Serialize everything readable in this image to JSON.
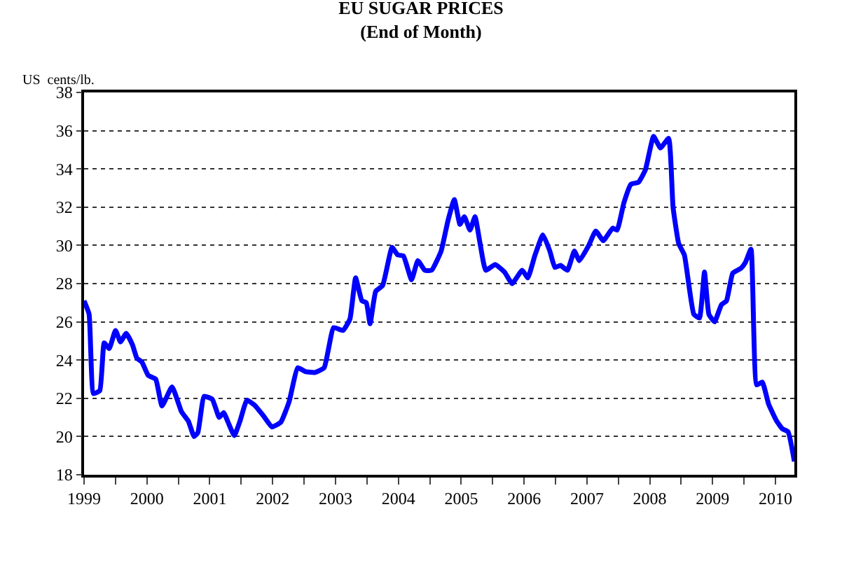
{
  "chart_data": {
    "type": "line",
    "title": "EU SUGAR PRICES\n(End of Month)",
    "ylabel": "US  cents/lb.",
    "x": [
      1999.0,
      1999.08,
      1999.15,
      1999.25,
      1999.32,
      1999.4,
      1999.5,
      1999.58,
      1999.67,
      1999.77,
      1999.84,
      1999.92,
      2000.02,
      2000.14,
      2000.24,
      2000.4,
      2000.55,
      2000.66,
      2000.75,
      2000.81,
      2000.91,
      2001.04,
      2001.15,
      2001.22,
      2001.31,
      2001.39,
      2001.48,
      2001.59,
      2001.71,
      2001.85,
      2001.99,
      2002.13,
      2002.26,
      2002.4,
      2002.52,
      2002.67,
      2002.82,
      2002.97,
      2003.12,
      2003.23,
      2003.32,
      2003.42,
      2003.49,
      2003.55,
      2003.64,
      2003.75,
      2003.9,
      2003.99,
      2004.08,
      2004.21,
      2004.31,
      2004.42,
      2004.53,
      2004.68,
      2004.79,
      2004.89,
      2004.98,
      2005.05,
      2005.14,
      2005.22,
      2005.3,
      2005.39,
      2005.54,
      2005.69,
      2005.81,
      2005.97,
      2006.06,
      2006.17,
      2006.3,
      2006.41,
      2006.49,
      2006.58,
      2006.69,
      2006.8,
      2006.88,
      2007.03,
      2007.14,
      2007.26,
      2007.41,
      2007.48,
      2007.59,
      2007.7,
      2007.82,
      2007.93,
      2008.06,
      2008.17,
      2008.3,
      2008.37,
      2008.46,
      2008.55,
      2008.7,
      2008.79,
      2008.87,
      2008.94,
      2009.03,
      2009.14,
      2009.22,
      2009.32,
      2009.45,
      2009.52,
      2009.61,
      2009.7,
      2009.79,
      2009.89,
      2010.02,
      2010.11,
      2010.2,
      2010.3
    ],
    "series": [
      {
        "color": "#0000ff",
        "values": [
          27.1,
          26.4,
          22.25,
          22.4,
          24.9,
          24.6,
          25.55,
          24.95,
          25.4,
          24.8,
          24.1,
          23.9,
          23.2,
          23.0,
          21.6,
          22.6,
          21.3,
          20.8,
          20.0,
          20.2,
          22.1,
          21.95,
          21.0,
          21.25,
          20.6,
          20.05,
          20.8,
          21.9,
          21.65,
          21.1,
          20.5,
          20.75,
          21.8,
          23.6,
          23.4,
          23.35,
          23.6,
          25.7,
          25.55,
          26.15,
          28.3,
          27.1,
          27.0,
          25.9,
          27.6,
          27.9,
          29.9,
          29.5,
          29.45,
          28.2,
          29.2,
          28.7,
          28.7,
          29.7,
          31.3,
          32.4,
          31.1,
          31.5,
          30.8,
          31.5,
          30.1,
          28.7,
          29.0,
          28.6,
          28.0,
          28.7,
          28.3,
          29.45,
          30.55,
          29.7,
          28.85,
          28.95,
          28.7,
          29.7,
          29.2,
          30.0,
          30.75,
          30.25,
          30.9,
          30.8,
          32.25,
          33.2,
          33.3,
          33.95,
          35.7,
          35.1,
          35.6,
          32.0,
          30.1,
          29.5,
          26.4,
          26.2,
          28.6,
          26.4,
          26.0,
          26.9,
          27.1,
          28.55,
          28.8,
          29.1,
          29.8,
          22.7,
          22.85,
          21.7,
          20.8,
          20.4,
          20.25,
          18.7
        ]
      }
    ],
    "xlim": [
      1999.0,
      2010.3
    ],
    "xticks": [
      {
        "value": 1999,
        "label": "1999"
      },
      {
        "value": 1999.5,
        "label": null
      },
      {
        "value": 2000,
        "label": "2000"
      },
      {
        "value": 2000.5,
        "label": null
      },
      {
        "value": 2001,
        "label": "2001"
      },
      {
        "value": 2001.5,
        "label": null
      },
      {
        "value": 2002,
        "label": "2002"
      },
      {
        "value": 2002.5,
        "label": null
      },
      {
        "value": 2003,
        "label": "2003"
      },
      {
        "value": 2003.5,
        "label": null
      },
      {
        "value": 2004,
        "label": "2004"
      },
      {
        "value": 2004.5,
        "label": null
      },
      {
        "value": 2005,
        "label": "2005"
      },
      {
        "value": 2005.5,
        "label": null
      },
      {
        "value": 2006,
        "label": "2006"
      },
      {
        "value": 2006.5,
        "label": null
      },
      {
        "value": 2007,
        "label": "2007"
      },
      {
        "value": 2007.5,
        "label": null
      },
      {
        "value": 2008,
        "label": "2008"
      },
      {
        "value": 2008.5,
        "label": null
      },
      {
        "value": 2009,
        "label": "2009"
      },
      {
        "value": 2009.5,
        "label": null
      },
      {
        "value": 2010,
        "label": "2010"
      }
    ],
    "ylim": [
      18,
      38
    ],
    "yticks": [
      18,
      20,
      22,
      24,
      26,
      28,
      30,
      32,
      34,
      36,
      38
    ],
    "grid": "y",
    "marker": "none",
    "line_style": "solid"
  }
}
